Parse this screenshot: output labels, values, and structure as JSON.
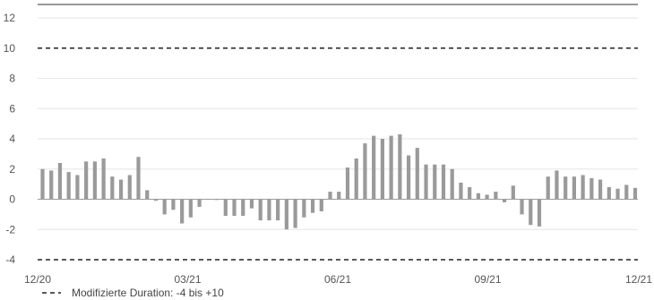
{
  "chart_data": {
    "type": "bar",
    "title": "",
    "xlabel": "",
    "ylabel": "",
    "ylim": [
      -4,
      12
    ],
    "y_ticks": [
      "12",
      "10",
      "8",
      "6",
      "4",
      "2",
      "0",
      "-2",
      "-4"
    ],
    "x_ticks": [
      "12/20",
      "03/21",
      "06/21",
      "09/21",
      "12/21"
    ],
    "grid": "horizontal",
    "bar_color": "#9a9a9a",
    "reference_lines": [
      {
        "value": 10,
        "style": "dashed"
      },
      {
        "value": -4,
        "style": "dashed"
      }
    ],
    "legend": {
      "placement": "bottom-left",
      "label": "Modifizierte Duration: -4 bis +10"
    },
    "values": [
      2.0,
      1.9,
      2.4,
      1.8,
      1.6,
      2.5,
      2.5,
      2.7,
      1.5,
      1.3,
      1.6,
      2.8,
      0.6,
      -0.1,
      -1.0,
      -0.7,
      -1.6,
      -1.2,
      -0.5,
      0,
      -0.05,
      -1.1,
      -1.1,
      -1.1,
      -0.6,
      -1.4,
      -1.4,
      -1.4,
      -2.0,
      -1.9,
      -1.2,
      -0.9,
      -0.8,
      0.5,
      0.5,
      2.1,
      2.7,
      3.7,
      4.2,
      4.0,
      4.2,
      4.3,
      2.9,
      3.4,
      2.3,
      2.3,
      2.3,
      2.0,
      1.1,
      0.8,
      0.4,
      0.3,
      0.5,
      -0.2,
      0.9,
      -1.0,
      -1.7,
      -1.8,
      1.5,
      1.9,
      1.5,
      1.5,
      1.6,
      1.4,
      1.3,
      0.8,
      0.7,
      0.95,
      0.75
    ]
  }
}
